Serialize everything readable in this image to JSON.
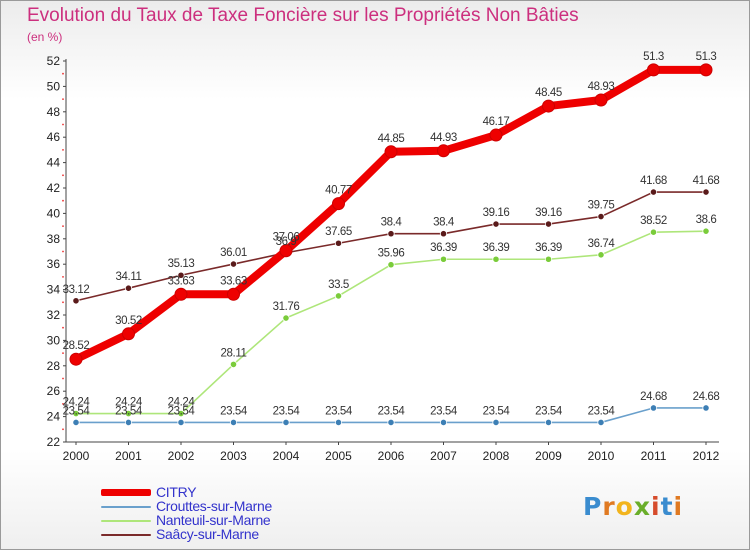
{
  "title": "Evolution du Taux de Taxe Foncière sur les Propriétés Non Bâties",
  "unit_label": "(en %)",
  "logo_letters": [
    {
      "ch": "P",
      "color": "#3a8ccf"
    },
    {
      "ch": "r",
      "color": "#e07a22"
    },
    {
      "ch": "o",
      "color": "#f2b41d"
    },
    {
      "ch": "x",
      "color": "#6aae2a"
    },
    {
      "ch": "i",
      "color": "#d64c2c"
    },
    {
      "ch": "t",
      "color": "#3a8ccf"
    },
    {
      "ch": "i",
      "color": "#e07a22"
    }
  ],
  "chart_data": {
    "type": "line",
    "title": "Evolution du Taux de Taxe Foncière sur les Propriétés Non Bâties",
    "ylabel": "(en %)",
    "xlabel": "",
    "ylim": [
      22,
      52
    ],
    "yticks": [
      22,
      24,
      26,
      28,
      30,
      32,
      34,
      36,
      38,
      40,
      42,
      44,
      46,
      48,
      50,
      52
    ],
    "x": [
      "2000",
      "2001",
      "2002",
      "2003",
      "2004",
      "2005",
      "2006",
      "2007",
      "2008",
      "2009",
      "2010",
      "2011",
      "2012"
    ],
    "grid": false,
    "legend_position": "bottom-left",
    "series": [
      {
        "name": "CITRY",
        "color": "#ee0000",
        "marker": "#ee0000",
        "values": [
          28.52,
          30.52,
          33.63,
          33.63,
          37.06,
          40.77,
          44.85,
          44.93,
          46.17,
          48.45,
          48.93,
          51.3,
          51.3
        ],
        "labels": [
          "28.52",
          "30.52",
          "33.63",
          "33.63",
          "37.06",
          "40.77",
          "44.85",
          "44.93",
          "46.17",
          "48.45",
          "48.93",
          "51.3",
          "51.3"
        ]
      },
      {
        "name": "Crouttes-sur-Marne",
        "color": "#6aa0cc",
        "marker": "#3d7fb5",
        "values": [
          23.54,
          23.54,
          23.54,
          23.54,
          23.54,
          23.54,
          23.54,
          23.54,
          23.54,
          23.54,
          23.54,
          24.68,
          24.68
        ],
        "labels": [
          "23.54",
          "23.54",
          "23.54",
          "23.54",
          "23.54",
          "23.54",
          "23.54",
          "23.54",
          "23.54",
          "23.54",
          "23.54",
          "24.68",
          "24.68"
        ]
      },
      {
        "name": "Nanteuil-sur-Marne",
        "color": "#aee67a",
        "marker": "#7acc3a",
        "values": [
          24.24,
          24.24,
          24.24,
          28.11,
          31.76,
          33.5,
          35.96,
          36.39,
          36.39,
          36.39,
          36.74,
          38.52,
          38.6
        ],
        "labels": [
          "24.24",
          "24.24",
          "24.24",
          "28.11",
          "31.76",
          "33.5",
          "35.96",
          "36.39",
          "36.39",
          "36.39",
          "36.74",
          "38.52",
          "38.6"
        ]
      },
      {
        "name": "Saâcy-sur-Marne",
        "color": "#7a2a2a",
        "marker": "#5a1a1a",
        "values": [
          33.12,
          34.11,
          35.13,
          36.01,
          36.9,
          37.65,
          38.4,
          38.4,
          39.16,
          39.16,
          39.75,
          41.68,
          41.68
        ],
        "labels": [
          "33.12",
          "34.11",
          "35.13",
          "36.01",
          "36.9",
          "37.65",
          "38.4",
          "38.4",
          "39.16",
          "39.16",
          "39.75",
          "41.68",
          "41.68"
        ]
      }
    ]
  }
}
